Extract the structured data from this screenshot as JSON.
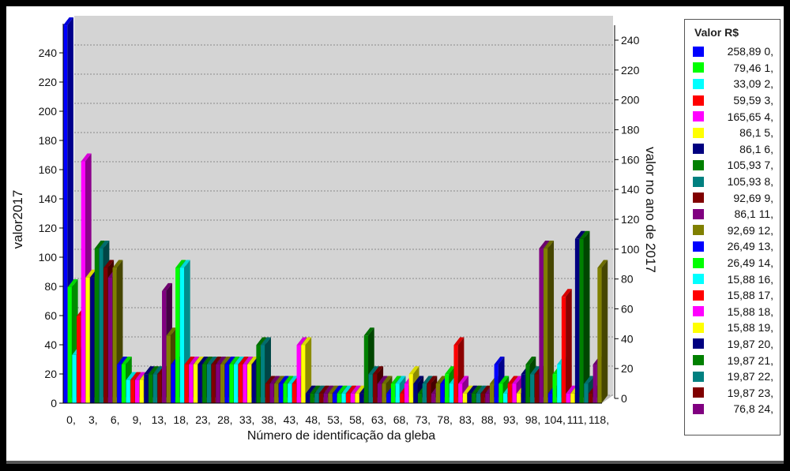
{
  "chart_data": {
    "type": "bar",
    "title": "",
    "xlabel": "Número de identificação da gleba",
    "ylabel": "valor2017",
    "y2label": "valor no ano de 2017",
    "ylim": [
      0,
      260
    ],
    "y_ticks": [
      0,
      20,
      40,
      60,
      80,
      100,
      120,
      140,
      160,
      180,
      200,
      220,
      240
    ],
    "y2lim": [
      0,
      250
    ],
    "y2_ticks": [
      0,
      20,
      40,
      60,
      80,
      100,
      120,
      140,
      160,
      180,
      200,
      220,
      240
    ],
    "x_tick_labels": [
      "0,",
      "3,",
      "6,",
      "9,",
      "13,",
      "18,",
      "23,",
      "28,",
      "33,",
      "38,",
      "43,",
      "48,",
      "53,",
      "58,",
      "63,",
      "68,",
      "73,",
      "78,",
      "83,",
      "88,",
      "93,",
      "98,",
      "104,",
      "111,",
      "118,"
    ],
    "grid": "horizontal dashed",
    "legend_placement": "right",
    "legend_title": "Valor R$",
    "legend": [
      {
        "label": "258,89 0,",
        "color": "#0000ff"
      },
      {
        "label": "79,46 1,",
        "color": "#00ff00"
      },
      {
        "label": "33,09 2,",
        "color": "#00ffff"
      },
      {
        "label": "59,59 3,",
        "color": "#ff0000"
      },
      {
        "label": "165,65 4,",
        "color": "#ff00ff"
      },
      {
        "label": "86,1 5,",
        "color": "#ffff00"
      },
      {
        "label": "86,1 6,",
        "color": "#000080"
      },
      {
        "label": "105,93 7,",
        "color": "#008000"
      },
      {
        "label": "105,93 8,",
        "color": "#008080"
      },
      {
        "label": "92,69 9,",
        "color": "#800000"
      },
      {
        "label": "86,1 11,",
        "color": "#800080"
      },
      {
        "label": "92,69 12,",
        "color": "#808000"
      },
      {
        "label": "26,49 13,",
        "color": "#0000ff"
      },
      {
        "label": "26,49 14,",
        "color": "#00ff00"
      },
      {
        "label": "15,88 16,",
        "color": "#00ffff"
      },
      {
        "label": "15,88 17,",
        "color": "#ff0000"
      },
      {
        "label": "15,88 18,",
        "color": "#ff00ff"
      },
      {
        "label": "15,88 19,",
        "color": "#ffff00"
      },
      {
        "label": "19,87 20,",
        "color": "#000080"
      },
      {
        "label": "19,87 21,",
        "color": "#008000"
      },
      {
        "label": "19,87 22,",
        "color": "#008080"
      },
      {
        "label": "19,87 23,",
        "color": "#800000"
      },
      {
        "label": "76,8 24,",
        "color": "#800080"
      }
    ],
    "bar_colors": [
      "#0000ff",
      "#00ff00",
      "#00ffff",
      "#ff0000",
      "#ff00ff",
      "#ffff00",
      "#000080",
      "#008000",
      "#008080",
      "#800000",
      "#800080",
      "#808000"
    ],
    "values": [
      258.89,
      79.46,
      33.09,
      59.59,
      165.65,
      86.1,
      86.1,
      105.93,
      105.93,
      92.69,
      86.1,
      92.69,
      26.49,
      26.49,
      15.88,
      15.88,
      15.88,
      15.88,
      19.87,
      19.87,
      19.87,
      19.87,
      76.8,
      46.35,
      26.49,
      92.69,
      92.69,
      26.49,
      26.49,
      26.49,
      26.49,
      26.49,
      26.49,
      26.49,
      26.49,
      26.49,
      26.49,
      26.49,
      26.49,
      26.49,
      26.49,
      26.49,
      26.49,
      39.73,
      39.73,
      13.24,
      13.24,
      13.24,
      13.24,
      13.24,
      13.24,
      13.24,
      39.73,
      39.73,
      6.62,
      6.62,
      6.62,
      6.62,
      6.62,
      6.62,
      6.62,
      6.62,
      6.62,
      6.62,
      6.62,
      6.62,
      6.62,
      46.35,
      19.87,
      19.87,
      13.24,
      13.24,
      6.62,
      13.24,
      13.24,
      6.62,
      13.24,
      19.87,
      13.24,
      6.62,
      13.24,
      13.24,
      6.62,
      13.24,
      13.24,
      19.87,
      13.24,
      39.73,
      13.24,
      6.62,
      6.62,
      6.62,
      6.62,
      6.62,
      6.62,
      13.24,
      26.49,
      13.24,
      6.62,
      13.24,
      13.24,
      6.62,
      19.87,
      26.49,
      19.87,
      19.87,
      105.93,
      105.93,
      6.62,
      19.87,
      26.49,
      72.82,
      6.62,
      6.62,
      112.55,
      112.55,
      13.24,
      6.62,
      26.49,
      92.69
    ]
  }
}
